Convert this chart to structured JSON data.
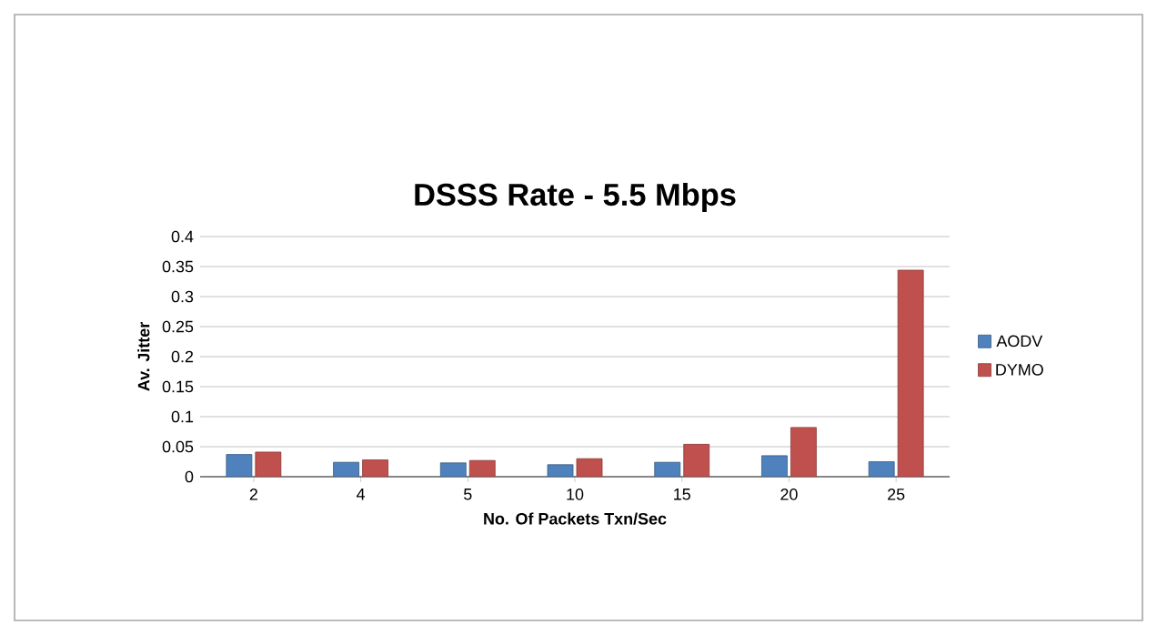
{
  "chart_data": {
    "type": "bar",
    "title": "DSSS Rate - 5.5 Mbps",
    "xlabel": "No. Of Packets Txn/Sec",
    "ylabel": "Av. Jitter",
    "categories": [
      "2",
      "4",
      "5",
      "10",
      "15",
      "20",
      "25"
    ],
    "series": [
      {
        "name": "AODV",
        "color": "#4f81bd",
        "values": [
          0.037,
          0.024,
          0.023,
          0.02,
          0.024,
          0.035,
          0.025
        ]
      },
      {
        "name": "DYMO",
        "color": "#c0504d",
        "values": [
          0.041,
          0.028,
          0.027,
          0.03,
          0.054,
          0.082,
          0.344
        ]
      }
    ],
    "ylim": [
      0,
      0.4
    ],
    "yticks": [
      0,
      0.05,
      0.1,
      0.15,
      0.2,
      0.25,
      0.3,
      0.35,
      0.4
    ],
    "grid": "y",
    "legend": "right"
  }
}
